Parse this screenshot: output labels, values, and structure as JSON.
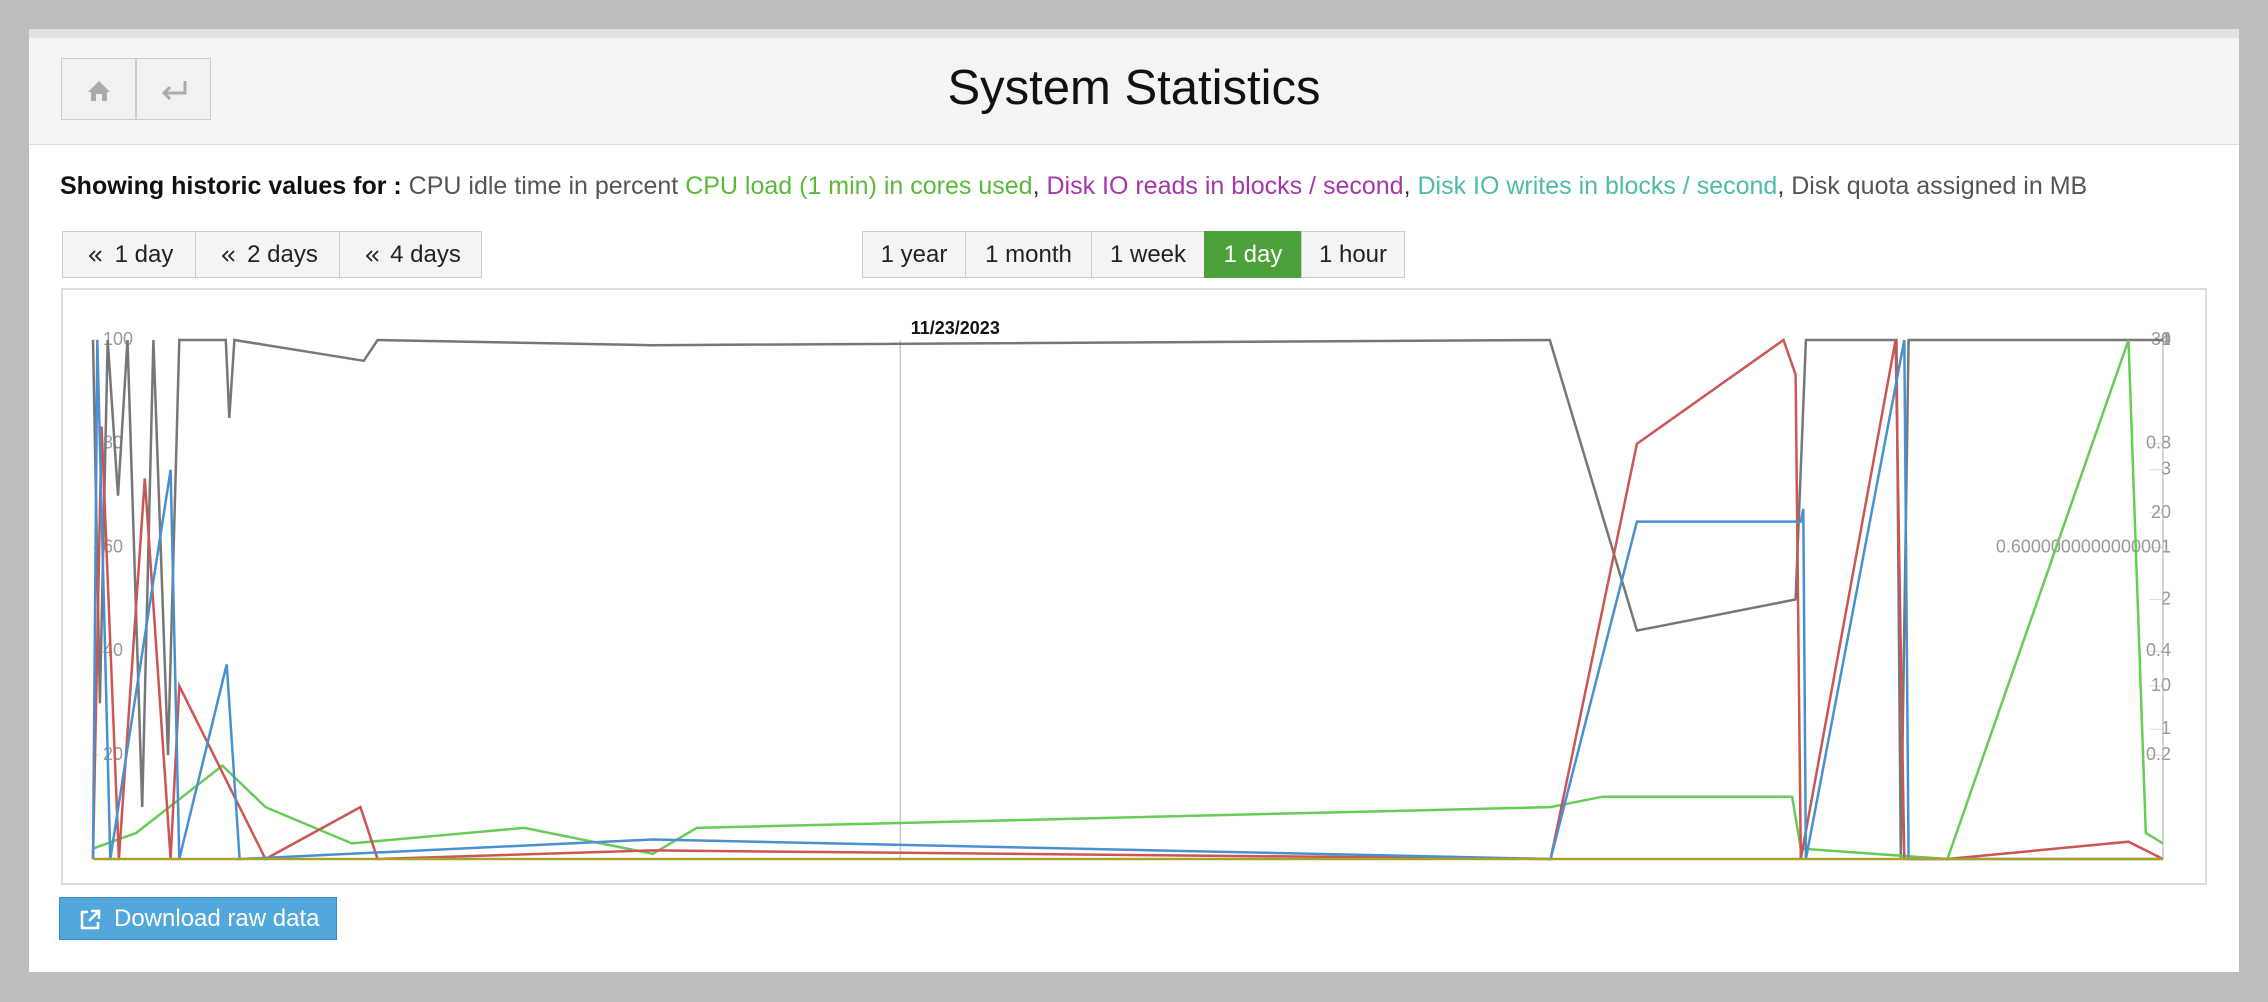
{
  "header": {
    "title": "System Statistics"
  },
  "legend_intro": "Showing historic values for :",
  "separator": ",",
  "back_buttons": [
    "1 day",
    "2 days",
    "4 days"
  ],
  "periods": [
    "1 year",
    "1 month",
    "1 week",
    "1 day",
    "1 hour"
  ],
  "active_period": 3,
  "download": "Download raw data",
  "chart_data": {
    "type": "line",
    "xlim": [
      0,
      24
    ],
    "xticks": [
      {
        "value": 9.36,
        "label": "11/23/2023"
      }
    ],
    "ylim": [
      0,
      100
    ],
    "yticks": [
      20,
      40,
      60,
      80,
      100
    ],
    "y2lim": [
      0,
      1
    ],
    "y2ticks": [
      0.2,
      0.4,
      0.6000000000000001,
      0.8,
      1
    ],
    "y3lim": [
      0,
      30
    ],
    "y3ticks": [
      10,
      20,
      30
    ],
    "y4lim": [
      0,
      4
    ],
    "y4ticks": [
      1,
      2,
      3,
      4
    ],
    "series": [
      {
        "name": "CPU idle time in percent",
        "color": "#777777",
        "axis": "y",
        "x": [
          0,
          0.08,
          0.17,
          0.29,
          0.4,
          0.57,
          0.7,
          0.87,
          1.0,
          1.54,
          1.58,
          1.64,
          3.14,
          3.3,
          6.49,
          16.89,
          17.9,
          19.74,
          19.86,
          20.91,
          20.96,
          21.05,
          23.6,
          24
        ],
        "values": [
          100,
          30,
          100,
          70,
          100,
          10,
          100,
          20,
          100,
          100,
          85,
          100,
          96,
          100,
          99,
          100,
          44,
          50,
          100,
          100,
          0,
          100,
          100,
          100
        ]
      },
      {
        "name": "CPU load (1 min) in cores used",
        "color": "#66cc55",
        "axis": "y2",
        "x": [
          0,
          0.5,
          1.5,
          2,
          3,
          5,
          6.49,
          7,
          16.9,
          17.5,
          19.7,
          19.8,
          21.5,
          23.6,
          23.8,
          24
        ],
        "values": [
          0.02,
          0.05,
          0.18,
          0.1,
          0.03,
          0.06,
          0.01,
          0.06,
          0.1,
          0.12,
          0.12,
          0.02,
          0,
          1,
          0.05,
          0.03
        ]
      },
      {
        "name": "Disk IO reads in blocks / second",
        "color": "#cc5555",
        "axis": "y3",
        "x": [
          0,
          0.1,
          0.3,
          0.6,
          0.9,
          1.0,
          2,
          3.1,
          3.3,
          6.49,
          16.9,
          17.9,
          19.6,
          19.74,
          19.8,
          20.9,
          21,
          21.5,
          23.6,
          24
        ],
        "values": [
          0,
          25,
          0,
          22,
          0,
          10,
          0,
          3,
          0,
          0.5,
          0,
          24,
          30,
          28,
          0,
          30,
          0,
          0,
          1,
          0
        ]
      },
      {
        "name": "Disk IO writes in blocks / second",
        "color": "#4a90d0",
        "axis": "y4",
        "x": [
          0,
          0.05,
          0.2,
          0.9,
          1.0,
          1.55,
          1.7,
          6.49,
          16.9,
          17.9,
          19.8,
          19.83,
          19.86,
          21,
          21.05,
          24
        ],
        "values": [
          0,
          4,
          0,
          3,
          0,
          1.5,
          0,
          0.15,
          0,
          2.6,
          2.6,
          2.7,
          0,
          4,
          0,
          0
        ]
      },
      {
        "name": "Disk quota assigned in MB",
        "color": "#aaa22a",
        "axis": "y",
        "x": [
          0,
          24
        ],
        "values": [
          0,
          0
        ]
      }
    ]
  }
}
